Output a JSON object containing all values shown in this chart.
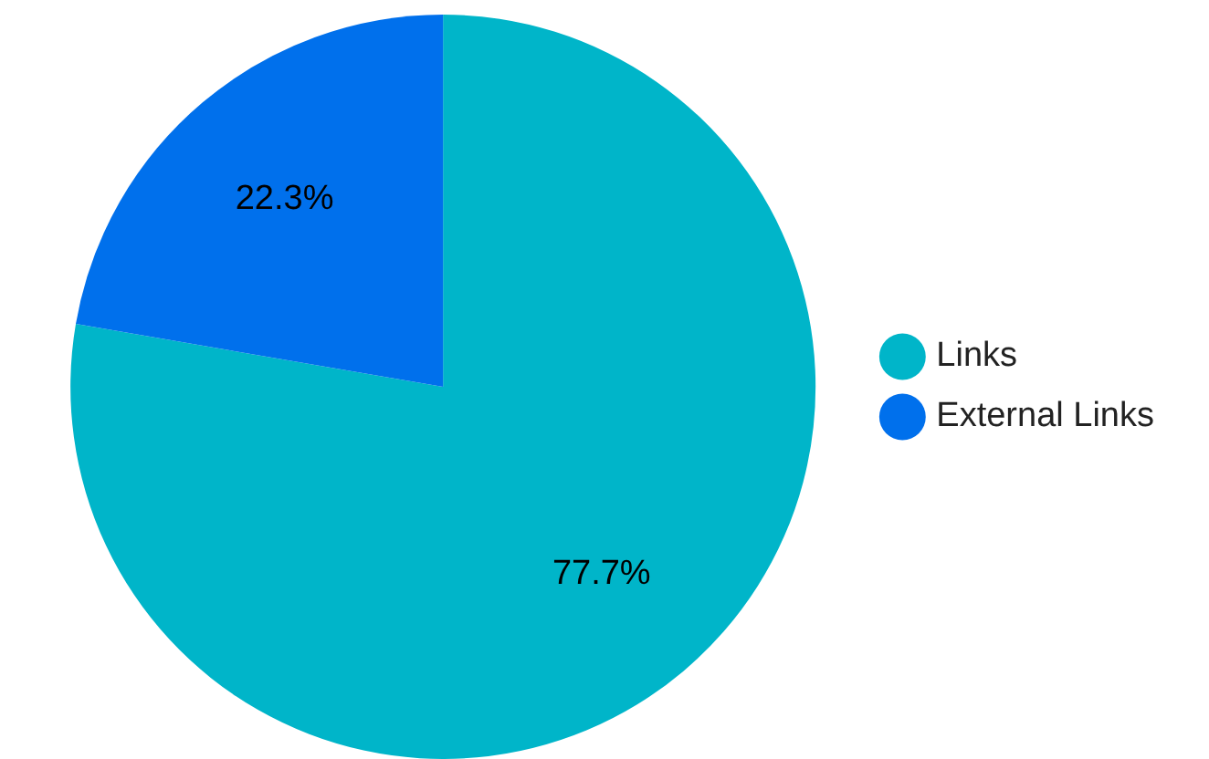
{
  "chart_data": {
    "type": "pie",
    "categories": [
      "Links",
      "External Links"
    ],
    "values": [
      77.7,
      22.3
    ],
    "colors": [
      "#00b5c9",
      "#0070ec"
    ],
    "value_labels": [
      "77.7%",
      "22.3%"
    ],
    "legend": "right"
  }
}
